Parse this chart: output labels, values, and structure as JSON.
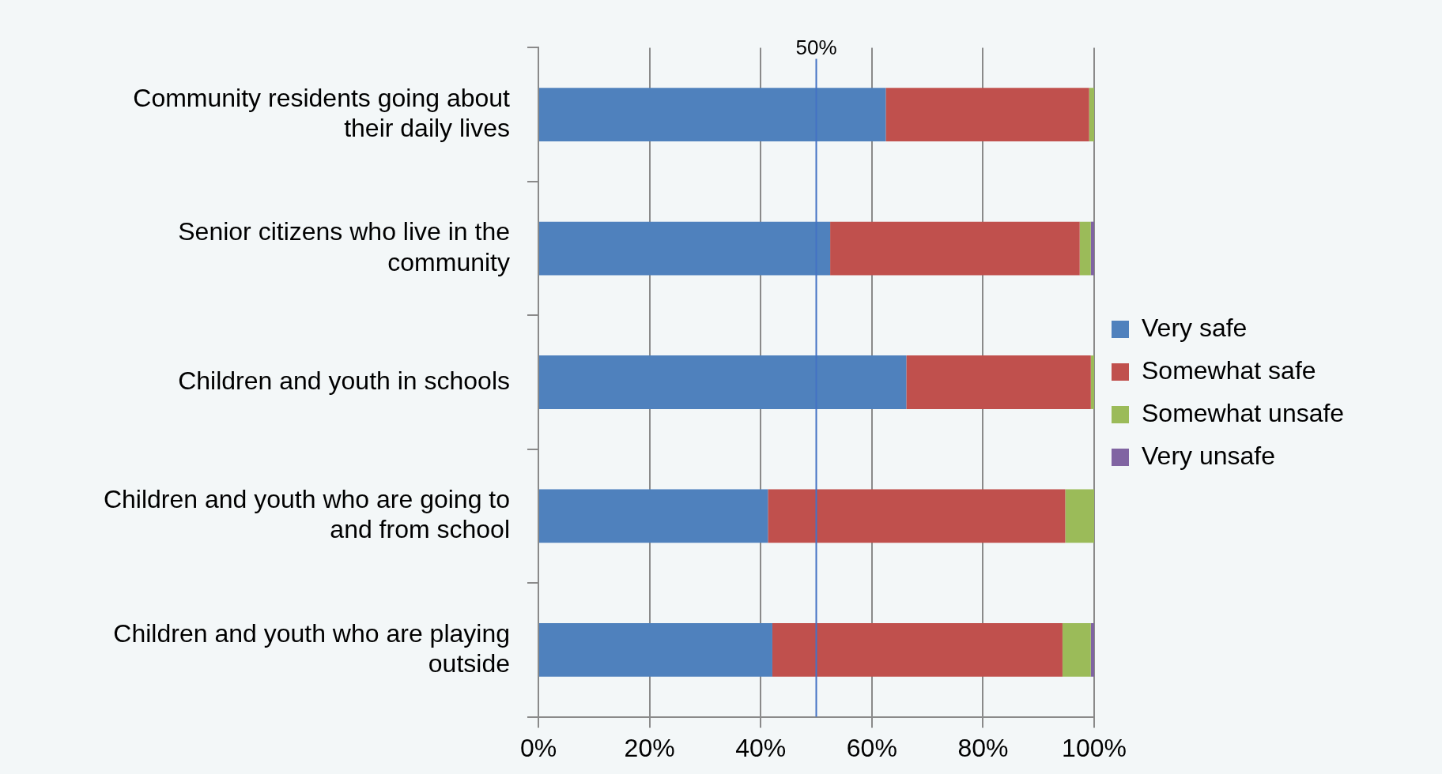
{
  "chart_data": {
    "type": "bar",
    "orientation": "horizontal",
    "stacked": true,
    "categories": [
      "Community residents going about their daily lives",
      "Senior citizens who live in the community",
      "Children and youth in schools",
      "Children and youth who are going to and from school",
      "Children and youth who are playing outside"
    ],
    "series": [
      {
        "name": "Very safe",
        "color": "#4f81bd",
        "values": [
          62.5,
          52.5,
          66.2,
          41.3,
          42.1
        ]
      },
      {
        "name": "Somewhat safe",
        "color": "#c0504d",
        "values": [
          36.6,
          44.9,
          33.2,
          53.5,
          52.2
        ]
      },
      {
        "name": "Somewhat unsafe",
        "color": "#9bbb59",
        "values": [
          0.9,
          2,
          0.6,
          5.2,
          5.1
        ]
      },
      {
        "name": "Very unsafe",
        "color": "#8064a2",
        "values": [
          0,
          0.6,
          0,
          0,
          0.6
        ]
      }
    ],
    "xlim": [
      0,
      100
    ],
    "xticks": [
      {
        "value": 0,
        "label": "0%"
      },
      {
        "value": 20,
        "label": "20%"
      },
      {
        "value": 40,
        "label": "40%"
      },
      {
        "value": 60,
        "label": "60%"
      },
      {
        "value": 80,
        "label": "80%"
      },
      {
        "value": 100,
        "label": "100%"
      }
    ],
    "ref_lines": [
      {
        "axis": "x",
        "value": 50,
        "label": "50%",
        "color": "#4472c4"
      }
    ],
    "grid": "x",
    "legend": "right"
  }
}
